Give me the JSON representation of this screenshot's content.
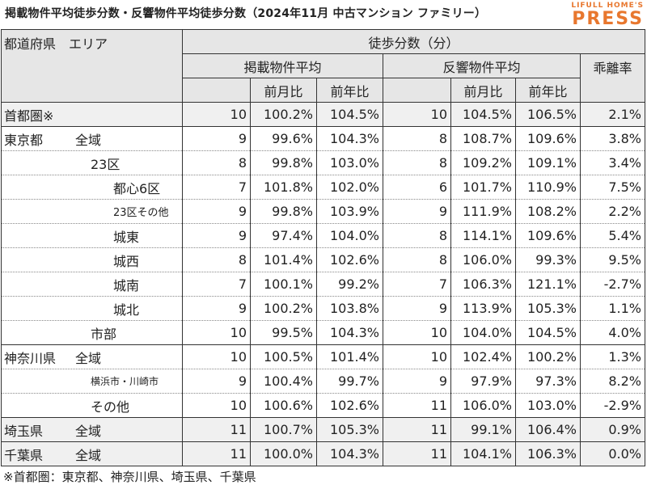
{
  "title": "掲載物件平均徒歩分数・反響物件平均徒歩分数（2024年11月 中古マンション ファミリー）",
  "logo": {
    "small": "LIFULL HOME'S",
    "big": "PRESS"
  },
  "header": {
    "col1": "都道府県　エリア",
    "group": "徒歩分数（分）",
    "listed": "掲載物件平均",
    "response": "反響物件平均",
    "gap": "乖離率",
    "mom": "前月比",
    "yoy": "前年比"
  },
  "rows": [
    {
      "pref": "首都圏※",
      "area": "",
      "v1": "10",
      "v2": "100.2%",
      "v3": "104.5%",
      "v4": "10",
      "v5": "104.5%",
      "v6": "106.5%",
      "v7": "2.1%"
    },
    {
      "pref": "東京都",
      "area": "全域",
      "v1": "9",
      "v2": "99.6%",
      "v3": "104.3%",
      "v4": "8",
      "v5": "108.7%",
      "v6": "109.6%",
      "v7": "3.8%"
    },
    {
      "pref": "",
      "area": "23区",
      "v1": "8",
      "v2": "99.8%",
      "v3": "103.0%",
      "v4": "8",
      "v5": "109.2%",
      "v6": "109.1%",
      "v7": "3.4%"
    },
    {
      "pref": "",
      "area": "都心6区",
      "v1": "7",
      "v2": "101.8%",
      "v3": "102.0%",
      "v4": "6",
      "v5": "101.7%",
      "v6": "110.9%",
      "v7": "7.5%"
    },
    {
      "pref": "",
      "area": "23区その他",
      "v1": "9",
      "v2": "99.8%",
      "v3": "103.9%",
      "v4": "9",
      "v5": "111.9%",
      "v6": "108.2%",
      "v7": "2.2%"
    },
    {
      "pref": "",
      "area": "城東",
      "v1": "9",
      "v2": "97.4%",
      "v3": "104.0%",
      "v4": "8",
      "v5": "114.1%",
      "v6": "109.6%",
      "v7": "5.4%"
    },
    {
      "pref": "",
      "area": "城西",
      "v1": "8",
      "v2": "101.4%",
      "v3": "102.6%",
      "v4": "8",
      "v5": "106.0%",
      "v6": "99.3%",
      "v7": "9.5%"
    },
    {
      "pref": "",
      "area": "城南",
      "v1": "7",
      "v2": "100.1%",
      "v3": "99.2%",
      "v4": "7",
      "v5": "106.3%",
      "v6": "121.1%",
      "v7": "-2.7%"
    },
    {
      "pref": "",
      "area": "城北",
      "v1": "9",
      "v2": "100.2%",
      "v3": "103.8%",
      "v4": "9",
      "v5": "113.9%",
      "v6": "105.3%",
      "v7": "1.1%"
    },
    {
      "pref": "",
      "area": "市部",
      "v1": "10",
      "v2": "99.5%",
      "v3": "104.3%",
      "v4": "10",
      "v5": "104.0%",
      "v6": "104.5%",
      "v7": "4.0%"
    },
    {
      "pref": "神奈川県",
      "area": "全域",
      "v1": "10",
      "v2": "100.5%",
      "v3": "101.4%",
      "v4": "10",
      "v5": "102.4%",
      "v6": "100.2%",
      "v7": "1.3%"
    },
    {
      "pref": "",
      "area": "横浜市・川崎市",
      "v1": "9",
      "v2": "100.4%",
      "v3": "99.7%",
      "v4": "9",
      "v5": "97.9%",
      "v6": "97.3%",
      "v7": "8.2%"
    },
    {
      "pref": "",
      "area": "その他",
      "v1": "10",
      "v2": "100.6%",
      "v3": "102.6%",
      "v4": "11",
      "v5": "106.0%",
      "v6": "103.0%",
      "v7": "-2.9%"
    },
    {
      "pref": "埼玉県",
      "area": "全域",
      "v1": "11",
      "v2": "100.7%",
      "v3": "105.3%",
      "v4": "11",
      "v5": "99.1%",
      "v6": "106.4%",
      "v7": "0.9%"
    },
    {
      "pref": "千葉県",
      "area": "全域",
      "v1": "11",
      "v2": "100.0%",
      "v3": "104.3%",
      "v4": "11",
      "v5": "104.1%",
      "v6": "106.3%",
      "v7": "0.0%"
    }
  ],
  "footnote": "※首都圏：東京都、神奈川県、埼玉県、千葉県"
}
